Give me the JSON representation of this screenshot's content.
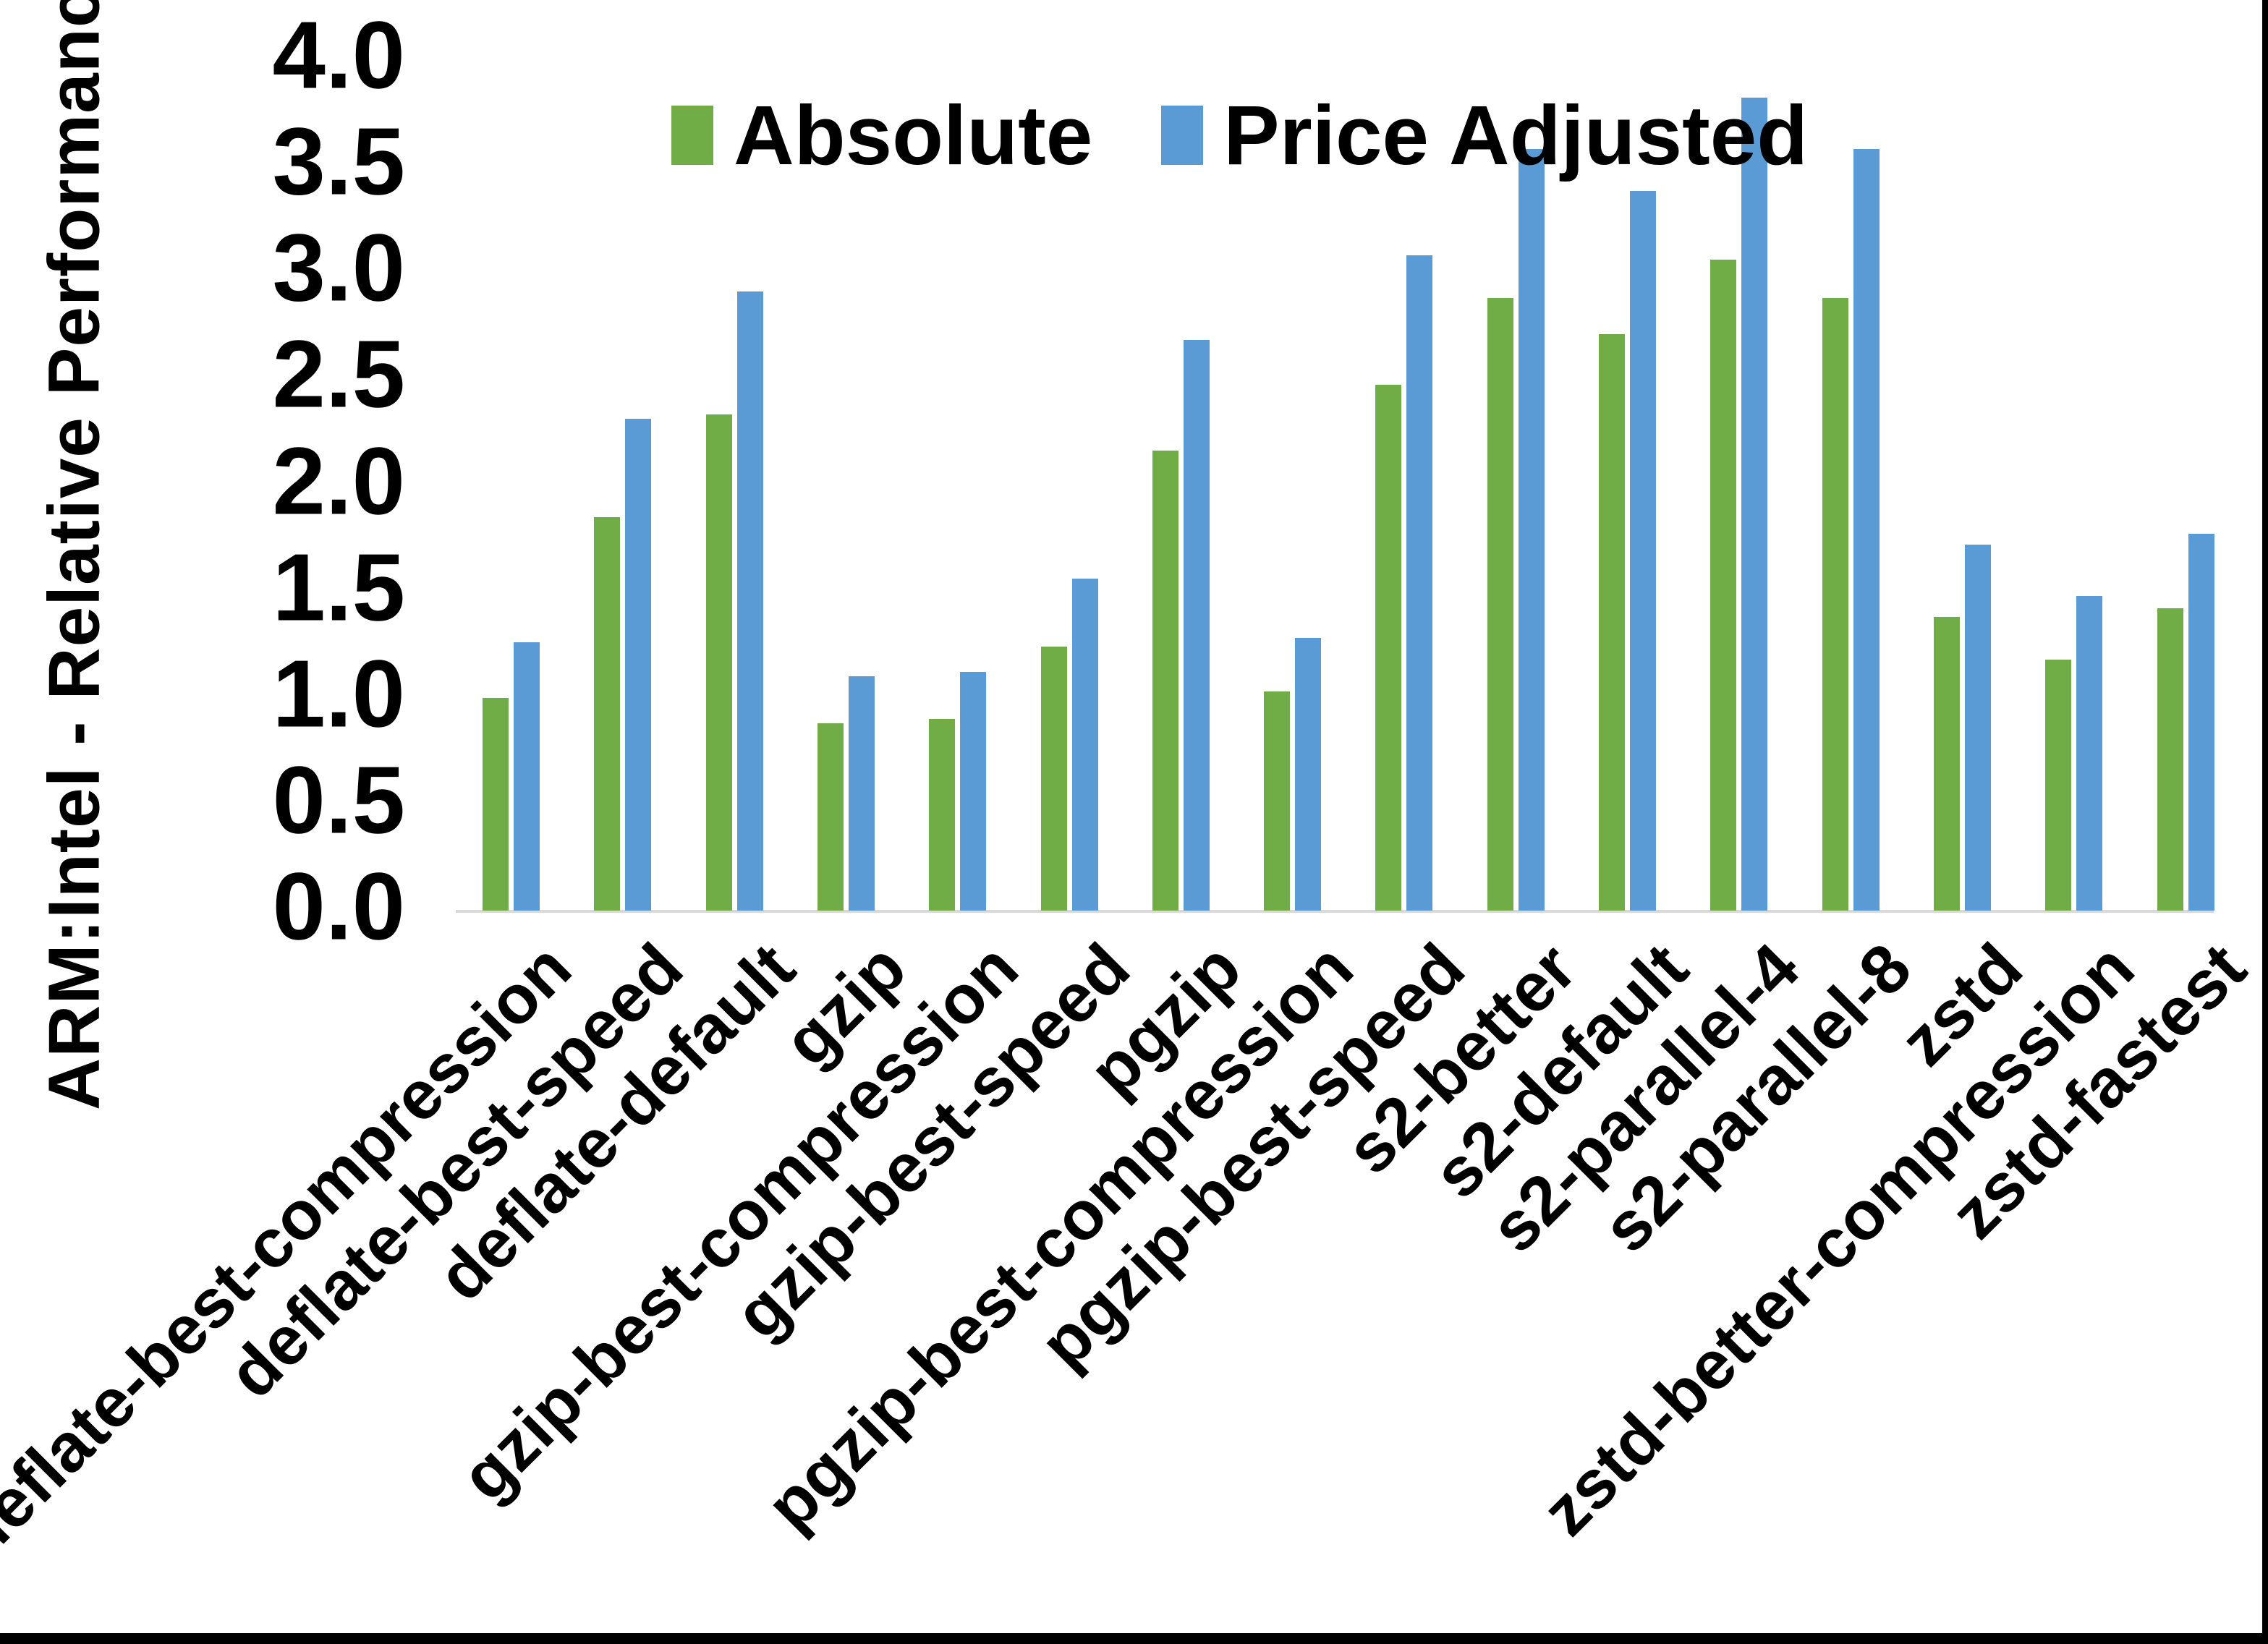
{
  "chart_data": {
    "type": "bar",
    "title": "",
    "xlabel": "",
    "ylabel": "ARM:Intel - Relative Performance",
    "ylim": [
      0.0,
      4.0
    ],
    "ytick_labels": [
      "0.0",
      "0.5",
      "1.0",
      "1.5",
      "2.0",
      "2.5",
      "3.0",
      "3.5",
      "4.0"
    ],
    "grid": false,
    "legend_position": "top",
    "axis_line_color": "#d9d9d9",
    "categories": [
      "deflate-best-compression",
      "deflate-best-speed",
      "deflate-default",
      "gzip",
      "gzip-best-compression",
      "gzip-best-speed",
      "pgzip",
      "pgzip-best-compression",
      "pgzip-best-speed",
      "s2-better",
      "s2-default",
      "s2-parallel-4",
      "s2-parallel-8",
      "zstd",
      "zstd-better-compression",
      "zstd-fastest"
    ],
    "series": [
      {
        "name": "Absolute",
        "color": "#70AD47",
        "values": [
          1.0,
          1.85,
          2.33,
          0.88,
          0.9,
          1.24,
          2.16,
          1.03,
          2.47,
          2.88,
          2.71,
          3.06,
          2.88,
          1.38,
          1.18,
          1.42
        ]
      },
      {
        "name": "Price Adjusted",
        "color": "#5B9BD5",
        "values": [
          1.26,
          2.31,
          2.91,
          1.1,
          1.12,
          1.56,
          2.68,
          1.28,
          3.08,
          3.58,
          3.38,
          3.82,
          3.58,
          1.72,
          1.48,
          1.77
        ]
      }
    ]
  }
}
